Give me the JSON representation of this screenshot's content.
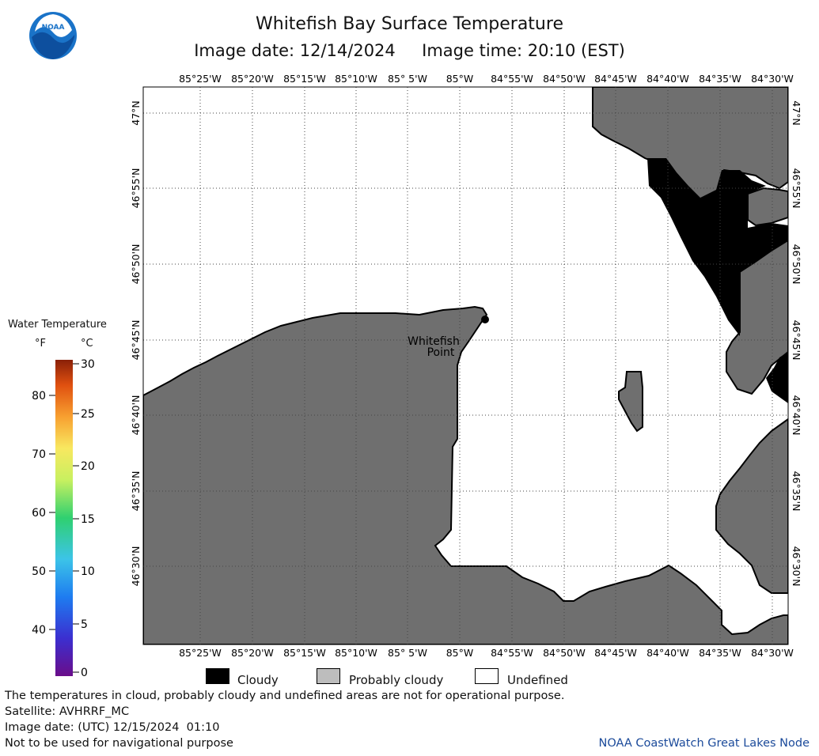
{
  "header": {
    "title": "Whitefish Bay Surface Temperature",
    "subtitle": "Image date: 12/14/2024     Image time: 20:10 (EST)"
  },
  "logo": {
    "text": "NOAA",
    "icon": "noaa-logo-icon"
  },
  "map": {
    "lon_labels": [
      "85°25'W",
      "85°20'W",
      "85°15'W",
      "85°10'W",
      "85° 5'W",
      "85°W",
      "84°55'W",
      "84°50'W",
      "84°45'W",
      "84°40'W",
      "84°35'W",
      "84°30'W"
    ],
    "lat_labels": [
      "47°N",
      "46°55'N",
      "46°50'N",
      "46°45'N",
      "46°40'N",
      "46°35'N",
      "46°30'N"
    ],
    "place_label_line1": "Whitefish",
    "place_label_line2": "Point",
    "colors": {
      "land": "#6f6f6f",
      "cloud": "#000000",
      "water": "#ffffff",
      "grid": "#444444"
    }
  },
  "colorbar": {
    "title": "Water Temperature",
    "unit_f": "°F",
    "unit_c": "°C",
    "f_ticks": [
      "80",
      "70",
      "60",
      "50",
      "40"
    ],
    "c_ticks": [
      "30",
      "25",
      "20",
      "15",
      "10",
      "5",
      "0"
    ]
  },
  "legend": {
    "cloudy": "Cloudy",
    "probably_cloudy": "Probably cloudy",
    "undefined": "Undefined"
  },
  "notes": {
    "line1": "The temperatures in cloud, probably cloudy and undefined areas are not for operational purpose.",
    "line2": "Satellite: AVHRRF_MC",
    "line3": "Image date: (UTC) 12/15/2024  01:10",
    "line4": "Not to be used for navigational purpose",
    "credit": "NOAA CoastWatch Great Lakes Node"
  }
}
